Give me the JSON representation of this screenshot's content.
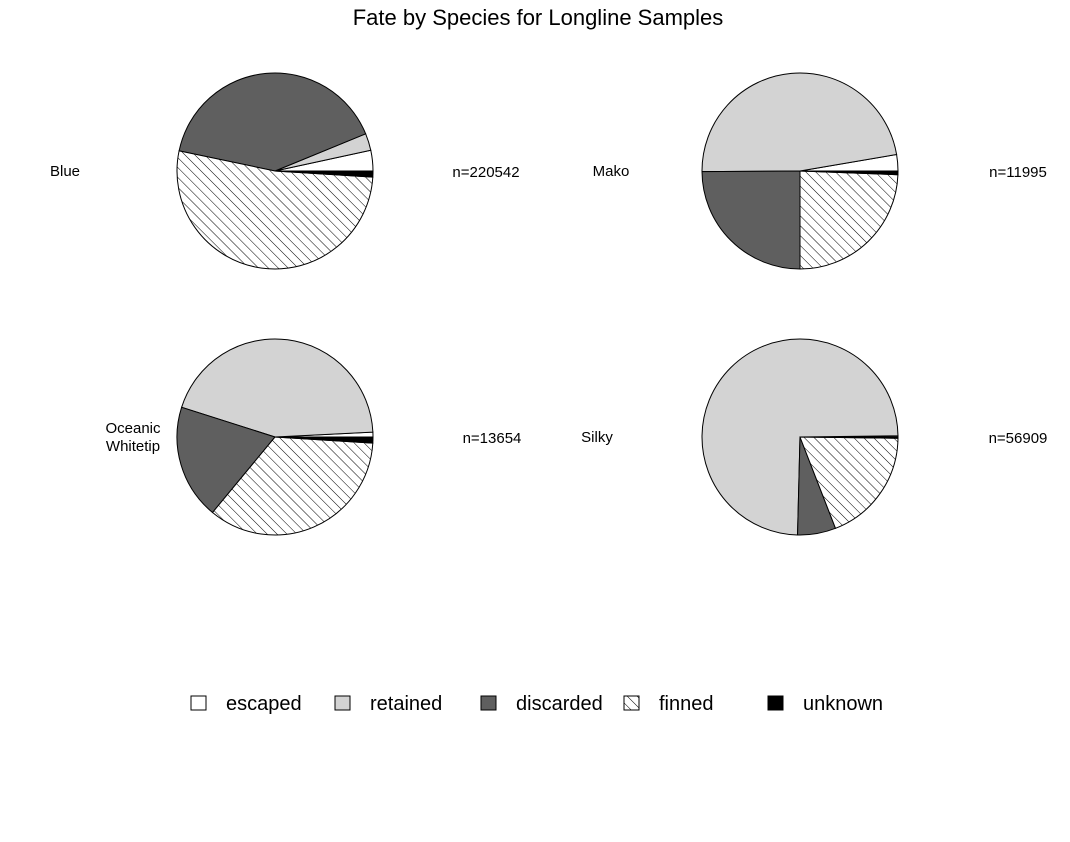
{
  "chart_data": {
    "type": "pie",
    "title": "Fate by Species for Longline Samples",
    "categories": [
      "escaped",
      "retained",
      "discarded",
      "finned",
      "unknown"
    ],
    "fills": {
      "escaped": "#ffffff",
      "retained": "#d3d3d3",
      "discarded": "#5f5f5f",
      "finned": "hatch",
      "unknown": "#000000"
    },
    "start_angle_deg": 0,
    "direction": "counterclockwise",
    "legend_position": "bottom",
    "panels": [
      {
        "species": [
          "Blue"
        ],
        "n_label": "n=220542",
        "values": {
          "escaped": 0.034,
          "retained": 0.028,
          "discarded": 0.405,
          "finned": 0.523,
          "unknown": 0.01
        }
      },
      {
        "species": [
          "Mako"
        ],
        "n_label": "n=11995",
        "values": {
          "escaped": 0.027,
          "retained": 0.474,
          "discarded": 0.249,
          "finned": 0.244,
          "unknown": 0.006
        }
      },
      {
        "species": [
          "Oceanic",
          "Whitetip"
        ],
        "n_label": "n=13654",
        "values": {
          "escaped": 0.008,
          "retained": 0.443,
          "discarded": 0.189,
          "finned": 0.35,
          "unknown": 0.01
        }
      },
      {
        "species": [
          "Silky"
        ],
        "n_label": "n=56909",
        "values": {
          "escaped": 0.002,
          "retained": 0.744,
          "discarded": 0.063,
          "finned": 0.189,
          "unknown": 0.002
        }
      }
    ]
  }
}
